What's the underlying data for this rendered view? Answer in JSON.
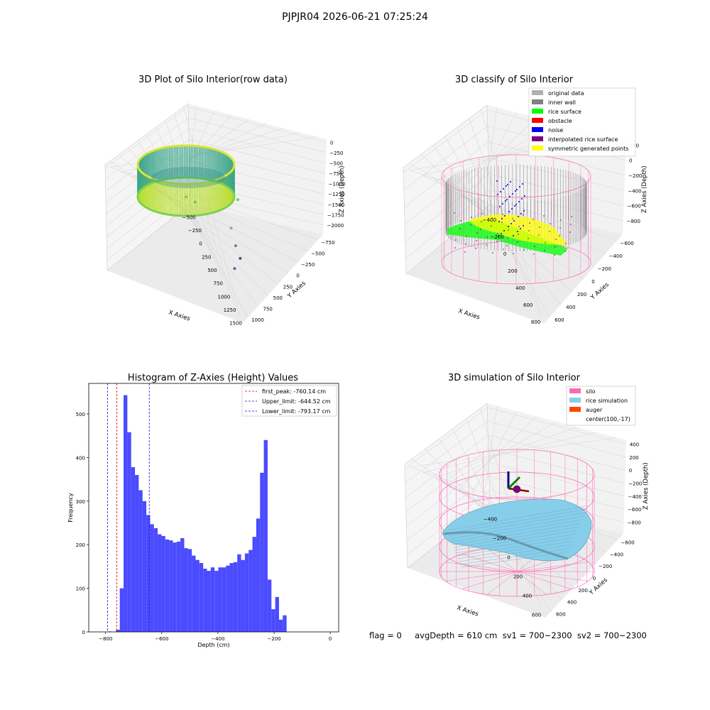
{
  "figure": {
    "suptitle": "PJPJR04 2026-06-21 07:25:24",
    "status_line": "flag = 0     avgDepth = 610 cm  sv1 = 700~2300  sv2 = 700~2300"
  },
  "colors": {
    "hist_bar": "#4b4bff",
    "first_peak": "#e00000",
    "limits": "#1010cc",
    "silo": "#ff69b4",
    "rice_simulation": "#87ceeb",
    "auger": "#ff4500",
    "inner_wall": "#808080",
    "rice_surface": "#00ff00",
    "obstacle": "#ff0000",
    "noise": "#0000ff",
    "interpolated": "#800080",
    "symmetric": "#ffff00",
    "original": "#b0b0b0"
  },
  "chart_data": [
    {
      "type": "scatter",
      "title": "3D Plot of Silo Interior(row data)",
      "xlabel": "X Axies",
      "ylabel": "Y Axies",
      "zlabel": "Z Axies (Depth)",
      "x_ticks": [
        "−500",
        "−250",
        "0",
        "250",
        "500",
        "750",
        "1000",
        "1250",
        "1500"
      ],
      "y_ticks": [
        "−750",
        "−500",
        "−250",
        "0",
        "250",
        "500",
        "750",
        "1000"
      ],
      "z_ticks": [
        "0",
        "−250",
        "−500",
        "−750",
        "−1000",
        "−1250",
        "−1500",
        "−1750",
        "−2000"
      ],
      "xlim": [
        -600,
        1500
      ],
      "ylim": [
        -800,
        1100
      ],
      "zlim": [
        -2100,
        100
      ],
      "scatter_points_note": "",
      "outliers": [
        {
          "x": 300,
          "y": 100,
          "z": -900
        },
        {
          "x": 400,
          "y": 200,
          "z": -1000
        },
        {
          "x": 800,
          "y": 900,
          "z": -1000
        },
        {
          "x": 900,
          "y": 300,
          "z": -1400
        },
        {
          "x": 1000,
          "y": 200,
          "z": -1700
        },
        {
          "x": 1100,
          "y": 100,
          "z": -1900
        },
        {
          "x": 1150,
          "y": -300,
          "z": -2000
        }
      ]
    },
    {
      "type": "scatter",
      "title": "3D classify of Silo Interior",
      "xlabel": "X Axies",
      "ylabel": "Y Axies",
      "zlabel": "Z Axies (Depth)",
      "x_ticks": [
        "−400",
        "−200",
        "0",
        "200",
        "400",
        "600",
        "800"
      ],
      "y_ticks": [
        "−600",
        "−400",
        "−200",
        "0",
        "200",
        "400",
        "600"
      ],
      "z_ticks": [
        "200",
        "0",
        "−200",
        "−400",
        "−600",
        "−800"
      ],
      "legend": [
        {
          "label": "original data",
          "color": "#b0b0b0"
        },
        {
          "label": "inner wall",
          "color": "#808080"
        },
        {
          "label": "rice surface",
          "color": "#00ff00"
        },
        {
          "label": "obstacle",
          "color": "#ff0000"
        },
        {
          "label": "noise",
          "color": "#0000ff"
        },
        {
          "label": "interpolated rice surface",
          "color": "#800080"
        },
        {
          "label": "symmetric generated points",
          "color": "#ffff00"
        }
      ],
      "legend_placement": "top-right"
    },
    {
      "type": "bar",
      "title": "Histogram of Z-Axies (Height) Values",
      "xlabel": "Depth (cm)",
      "ylabel": "Frequency",
      "xlim": [
        -860,
        30
      ],
      "ylim": [
        0,
        570
      ],
      "x_ticks": [
        -800,
        -600,
        -400,
        -200,
        0
      ],
      "y_ticks": [
        0,
        100,
        200,
        300,
        400,
        500
      ],
      "bin_width": 13.5,
      "bin_start": -790,
      "values": [
        1,
        0,
        5,
        100,
        543,
        458,
        378,
        360,
        325,
        300,
        268,
        247,
        238,
        224,
        220,
        212,
        210,
        205,
        207,
        215,
        192,
        190,
        175,
        165,
        158,
        145,
        140,
        148,
        140,
        148,
        148,
        152,
        158,
        160,
        178,
        165,
        180,
        188,
        218,
        260,
        365,
        440,
        120,
        52,
        80,
        28,
        38
      ],
      "lines": [
        {
          "label": "first_peak: -760.14 cm",
          "x": -760.14,
          "color": "#e00000"
        },
        {
          "label": "Upper_limit: -644.52 cm",
          "x": -644.52,
          "color": "#1010cc"
        },
        {
          "label": "Lower_limit: -793.17 cm",
          "x": -793.17,
          "color": "#1010cc"
        }
      ],
      "legend_placement": "top-right"
    },
    {
      "type": "surface",
      "title": "3D simulation of Silo Interior",
      "xlabel": "X Axies",
      "ylabel": "Y Axies",
      "zlabel": "Z Axies (Depth)",
      "x_ticks": [
        "−400",
        "−200",
        "0",
        "200",
        "400",
        "600"
      ],
      "y_ticks": [
        "−600",
        "−400",
        "−200",
        "0",
        "200",
        "400",
        "600"
      ],
      "z_ticks": [
        "400",
        "200",
        "0",
        "−200",
        "−400",
        "−600",
        "−800"
      ],
      "legend": [
        {
          "label": "silo",
          "color": "#ff69b4"
        },
        {
          "label": "rice simulation",
          "color": "#87ceeb"
        },
        {
          "label": "auger",
          "color": "#ff4500"
        },
        {
          "label": "center(100,-17)",
          "color": ""
        }
      ],
      "legend_placement": "top-right"
    }
  ]
}
